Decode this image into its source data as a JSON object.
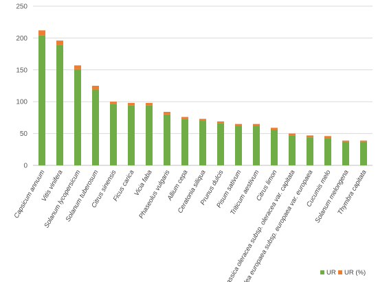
{
  "chart_data": {
    "type": "bar",
    "stacked": true,
    "title": "",
    "xlabel": "",
    "ylabel": "",
    "ylim": [
      0,
      250
    ],
    "yticks": [
      0,
      50,
      100,
      150,
      200,
      250
    ],
    "grid": true,
    "legend": "bottom-right",
    "categories": [
      "Capsicum annuum",
      "Vitis vinifera",
      "Solanum lycopersicum",
      "Solanum tuberosum",
      "Citrus sinensis",
      "Ficus carica",
      "Vicia faba",
      "Phaseolus vulgaris",
      "Allium cepa",
      "Ceratonia siliqua",
      "Prunus dulcis",
      "Pisum sativum",
      "Triticum aestivum",
      "Citrus limon",
      "Brassica oleracea  subsp. oleracea  var. capitata",
      "Olea europaea  subsp. europaea  var. europaea",
      "Cucumis melo",
      "Solanum melongena",
      "Thymbra capitata"
    ],
    "series": [
      {
        "name": "UR",
        "color": "#70ad47",
        "values": [
          204,
          189,
          151,
          119,
          96,
          94,
          94,
          80,
          73,
          70,
          66,
          62,
          62,
          56,
          47,
          44,
          43,
          37,
          37
        ]
      },
      {
        "name": "UR (%)",
        "color": "#ed7d31",
        "values": [
          8,
          7,
          6,
          6,
          4,
          4,
          4,
          4,
          3,
          3,
          3,
          3,
          3,
          3,
          3,
          3,
          3,
          2,
          2
        ]
      }
    ]
  }
}
